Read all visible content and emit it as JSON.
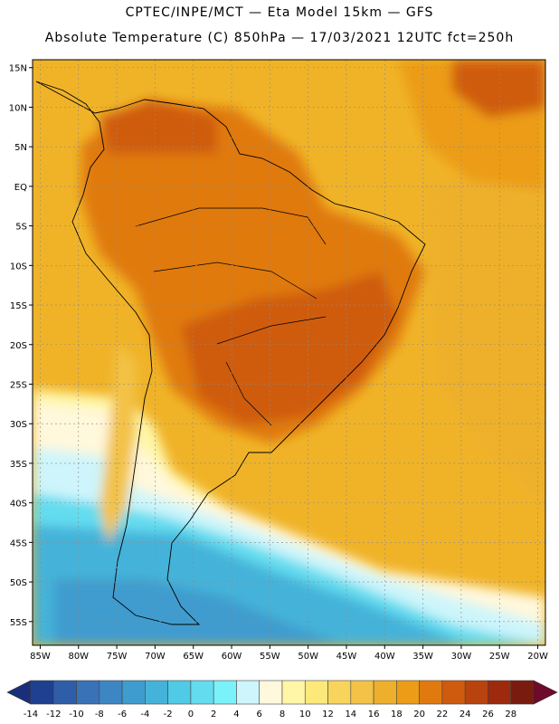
{
  "header": {
    "line1": "CPTEC/INPE/MCT —  Eta Model 15km — GFS",
    "line2": "Absolute Temperature (C) 850hPa — 17/03/2021 12UTC fct=250h"
  },
  "map": {
    "lat_labels": [
      "15N",
      "10N",
      "5N",
      "EQ",
      "5S",
      "10S",
      "15S",
      "20S",
      "25S",
      "30S",
      "35S",
      "40S",
      "45S",
      "50S",
      "55S"
    ],
    "lon_labels": [
      "85W",
      "80W",
      "75W",
      "70W",
      "65W",
      "60W",
      "55W",
      "50W",
      "45W",
      "40W",
      "35W",
      "30W",
      "25W",
      "20W"
    ],
    "lat_range": [
      -58,
      16
    ],
    "lon_range": [
      -86,
      -19
    ]
  },
  "colorbar": {
    "labels": [
      "-14",
      "-12",
      "-10",
      "-8",
      "-6",
      "-4",
      "-2",
      "0",
      "2",
      "4",
      "6",
      "8",
      "10",
      "12",
      "14",
      "16",
      "18",
      "20",
      "22",
      "24",
      "26",
      "28"
    ],
    "colors": [
      "#1f3f8f",
      "#2f5ea8",
      "#3a72b8",
      "#3d86c4",
      "#3f9cce",
      "#45b3d9",
      "#4fcbe6",
      "#63dcef",
      "#7af2fa",
      "#cdf5fb",
      "#fff8dc",
      "#fff6a8",
      "#fde97a",
      "#f9d45c",
      "#f3c246",
      "#eeb02c",
      "#ec9c16",
      "#e07a0e",
      "#cf5b0e",
      "#b9430f",
      "#9e2a0e",
      "#7a1b10"
    ],
    "low_arrow_color": "#1a2f7a",
    "high_arrow_color": "#6e0a2a"
  }
}
